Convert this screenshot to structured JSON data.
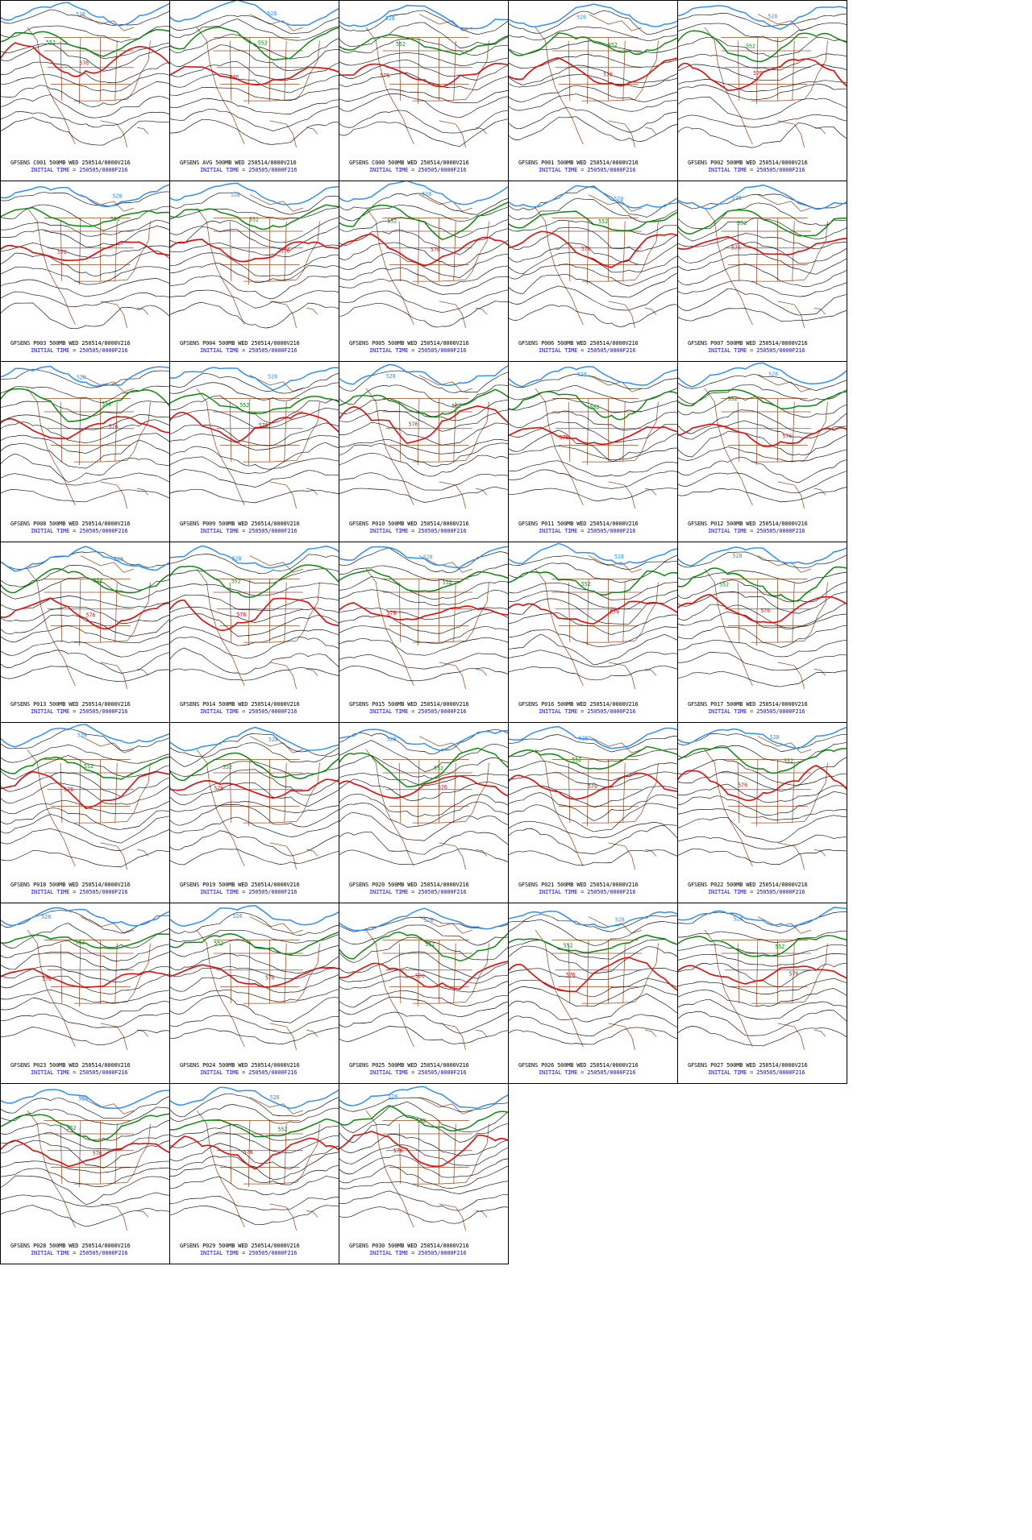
{
  "initial_time": "INITIAL TIME = 250505/0000F216",
  "contour_labels": {
    "low": "528",
    "mid": "552",
    "high": "576"
  },
  "colors": {
    "low": "#2f8fff",
    "mid": "#0a8a0a",
    "high": "#e01010",
    "other": "#111111",
    "coast": "#9a4a22",
    "caption_top": "#000000",
    "caption_bottom": "#1010d0"
  },
  "panels": [
    {
      "title": "GFSENS C001 500MB WED 250514/0000V216"
    },
    {
      "title": "GFSENS AVG 500MB WED 250514/0000V216"
    },
    {
      "title": "GFSENS C000 500MB WED 250514/0000V216"
    },
    {
      "title": "GFSENS P001 500MB WED 250514/0000V216"
    },
    {
      "title": "GFSENS P002 500MB WED 250514/0000V216"
    },
    {
      "title": "GFSENS P003 500MB WED 250514/0000V216"
    },
    {
      "title": "GFSENS P004 500MB WED 250514/0000V216"
    },
    {
      "title": "GFSENS P005 500MB WED 250514/0000V216"
    },
    {
      "title": "GFSENS P006 500MB WED 250514/0000V216"
    },
    {
      "title": "GFSENS P007 500MB WED 250514/0000V216"
    },
    {
      "title": "GFSENS P008 500MB WED 250514/0000V216"
    },
    {
      "title": "GFSENS P009 500MB WED 250514/0000V216"
    },
    {
      "title": "GFSENS P010 500MB WED 250514/0000V216"
    },
    {
      "title": "GFSENS P011 500MB WED 250514/0000V216"
    },
    {
      "title": "GFSENS P012 500MB WED 250514/0000V216"
    },
    {
      "title": "GFSENS P013 500MB WED 250514/0000V216"
    },
    {
      "title": "GFSENS P014 500MB WED 250514/0000V216"
    },
    {
      "title": "GFSENS P015 500MB WED 250514/0000V216"
    },
    {
      "title": "GFSENS P016 500MB WED 250514/0000V216"
    },
    {
      "title": "GFSENS P017 500MB WED 250514/0000V216"
    },
    {
      "title": "GFSENS P018 500MB WED 250514/0000V216"
    },
    {
      "title": "GFSENS P019 500MB WED 250514/0000V216"
    },
    {
      "title": "GFSENS P020 500MB WED 250514/0000V216"
    },
    {
      "title": "GFSENS P021 500MB WED 250514/0000V216"
    },
    {
      "title": "GFSENS P022 500MB WED 250514/0000V216"
    },
    {
      "title": "GFSENS P023 500MB WED 250514/0000V216"
    },
    {
      "title": "GFSENS P024 500MB WED 250514/0000V216"
    },
    {
      "title": "GFSENS P025 500MB WED 250514/0000V216"
    },
    {
      "title": "GFSENS P026 500MB WED 250514/0000V216"
    },
    {
      "title": "GFSENS P027 500MB WED 250514/0000V216"
    },
    {
      "title": "GFSENS P028 500MB WED 250514/0000V216"
    },
    {
      "title": "GFSENS P029 500MB WED 250514/0000V216"
    },
    {
      "title": "GFSENS P030 500MB WED 250514/0000V216"
    }
  ]
}
